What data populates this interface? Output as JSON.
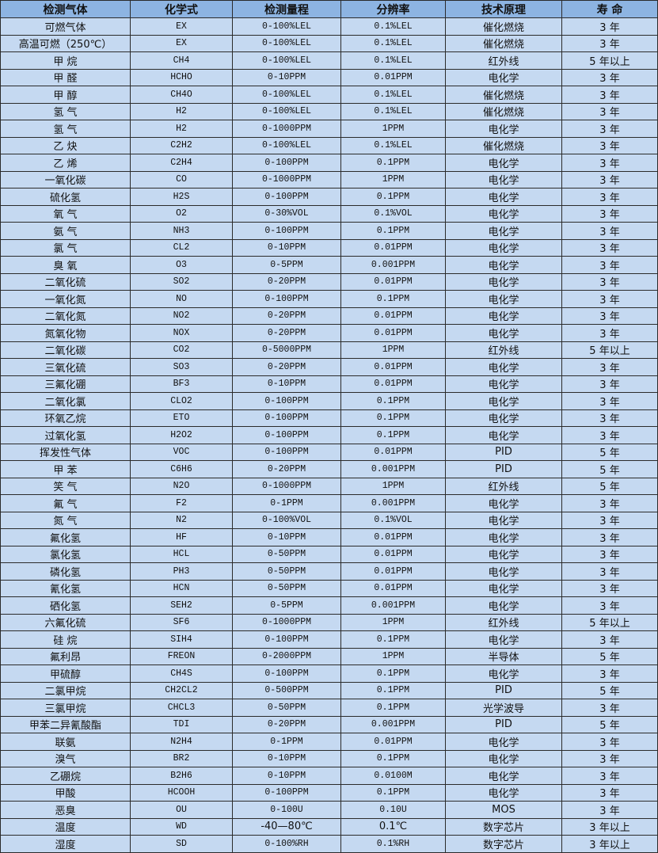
{
  "table": {
    "headers": [
      "检测气体",
      "化学式",
      "检测量程",
      "分辨率",
      "技术原理",
      "寿 命"
    ],
    "rows": [
      [
        "可燃气体",
        "EX",
        "0-100%LEL",
        "0.1%LEL",
        "催化燃烧",
        "3 年"
      ],
      [
        "高温可燃（250℃）",
        "EX",
        "0-100%LEL",
        "0.1%LEL",
        "催化燃烧",
        "3 年"
      ],
      [
        "甲 烷",
        "CH4",
        "0-100%LEL",
        "0.1%LEL",
        "红外线",
        "5 年以上"
      ],
      [
        "甲 醛",
        "HCHO",
        "0-10PPM",
        "0.01PPM",
        "电化学",
        "3 年"
      ],
      [
        "甲 醇",
        "CH4O",
        "0-100%LEL",
        "0.1%LEL",
        "催化燃烧",
        "3 年"
      ],
      [
        "氢 气",
        "H2",
        "0-100%LEL",
        "0.1%LEL",
        "催化燃烧",
        "3 年"
      ],
      [
        "氢 气",
        "H2",
        "0-1000PPM",
        "1PPM",
        "电化学",
        "3 年"
      ],
      [
        "乙 炔",
        "C2H2",
        "0-100%LEL",
        "0.1%LEL",
        "催化燃烧",
        "3 年"
      ],
      [
        "乙 烯",
        "C2H4",
        "0-100PPM",
        "0.1PPM",
        "电化学",
        "3 年"
      ],
      [
        "一氧化碳",
        "CO",
        "0-1000PPM",
        "1PPM",
        "电化学",
        "3 年"
      ],
      [
        "硫化氢",
        "H2S",
        "0-100PPM",
        "0.1PPM",
        "电化学",
        "3 年"
      ],
      [
        "氧 气",
        "O2",
        "0-30%VOL",
        "0.1%VOL",
        "电化学",
        "3 年"
      ],
      [
        "氨 气",
        "NH3",
        "0-100PPM",
        "0.1PPM",
        "电化学",
        "3 年"
      ],
      [
        "氯 气",
        "CL2",
        "0-10PPM",
        "0.01PPM",
        "电化学",
        "3 年"
      ],
      [
        "臭 氧",
        "O3",
        "0-5PPM",
        "0.001PPM",
        "电化学",
        "3 年"
      ],
      [
        "二氧化硫",
        "SO2",
        "0-20PPM",
        "0.01PPM",
        "电化学",
        "3 年"
      ],
      [
        "一氧化氮",
        "NO",
        "0-100PPM",
        "0.1PPM",
        "电化学",
        "3 年"
      ],
      [
        "二氧化氮",
        "NO2",
        "0-20PPM",
        "0.01PPM",
        "电化学",
        "3 年"
      ],
      [
        "氮氧化物",
        "NOX",
        "0-20PPM",
        "0.01PPM",
        "电化学",
        "3 年"
      ],
      [
        "二氧化碳",
        "CO2",
        "0-5000PPM",
        "1PPM",
        "红外线",
        "5 年以上"
      ],
      [
        "三氧化硫",
        "SO3",
        "0-20PPM",
        "0.01PPM",
        "电化学",
        "3 年"
      ],
      [
        "三氟化硼",
        "BF3",
        "0-10PPM",
        "0.01PPM",
        "电化学",
        "3 年"
      ],
      [
        "二氧化氯",
        "CLO2",
        "0-100PPM",
        "0.1PPM",
        "电化学",
        "3 年"
      ],
      [
        "环氧乙烷",
        "ETO",
        "0-100PPM",
        "0.1PPM",
        "电化学",
        "3 年"
      ],
      [
        "过氧化氢",
        "H2O2",
        "0-100PPM",
        "0.1PPM",
        "电化学",
        "3 年"
      ],
      [
        "挥发性气体",
        "VOC",
        "0-100PPM",
        "0.01PPM",
        "PID",
        "5 年"
      ],
      [
        "甲 苯",
        "C6H6",
        "0-20PPM",
        "0.001PPM",
        "PID",
        "5 年"
      ],
      [
        "笑 气",
        "N2O",
        "0-1000PPM",
        "1PPM",
        "红外线",
        "5 年"
      ],
      [
        "氟 气",
        "F2",
        "0-1PPM",
        "0.001PPM",
        "电化学",
        "3 年"
      ],
      [
        "氮 气",
        "N2",
        "0-100%VOL",
        "0.1%VOL",
        "电化学",
        "3 年"
      ],
      [
        "氟化氢",
        "HF",
        "0-10PPM",
        "0.01PPM",
        "电化学",
        "3 年"
      ],
      [
        "氯化氢",
        "HCL",
        "0-50PPM",
        "0.01PPM",
        "电化学",
        "3 年"
      ],
      [
        "磷化氢",
        "PH3",
        "0-50PPM",
        "0.01PPM",
        "电化学",
        "3 年"
      ],
      [
        "氰化氢",
        "HCN",
        "0-50PPM",
        "0.01PPM",
        "电化学",
        "3 年"
      ],
      [
        "硒化氢",
        "SEH2",
        "0-5PPM",
        "0.001PPM",
        "电化学",
        "3 年"
      ],
      [
        "六氟化硫",
        "SF6",
        "0-1000PPM",
        "1PPM",
        "红外线",
        "5 年以上"
      ],
      [
        "硅 烷",
        "SIH4",
        "0-100PPM",
        "0.1PPM",
        "电化学",
        "3 年"
      ],
      [
        "氟利昂",
        "FREON",
        "0-2000PPM",
        "1PPM",
        "半导体",
        "5 年"
      ],
      [
        "甲硫醇",
        "CH4S",
        "0-100PPM",
        "0.1PPM",
        "电化学",
        "3 年"
      ],
      [
        "二氯甲烷",
        "CH2CL2",
        "0-500PPM",
        "0.1PPM",
        "PID",
        "5 年"
      ],
      [
        "三氯甲烷",
        "CHCL3",
        "0-50PPM",
        "0.1PPM",
        "光学波导",
        "3 年"
      ],
      [
        "甲苯二异氰酸酯",
        "TDI",
        "0-20PPM",
        "0.001PPM",
        "PID",
        "5 年"
      ],
      [
        "联氨",
        "N2H4",
        "0-1PPM",
        "0.01PPM",
        "电化学",
        "3 年"
      ],
      [
        "溴气",
        "BR2",
        "0-10PPM",
        "0.1PPM",
        "电化学",
        "3 年"
      ],
      [
        "乙硼烷",
        "B2H6",
        "0-10PPM",
        "0.0100M",
        "电化学",
        "3 年"
      ],
      [
        "甲酸",
        "HCOOH",
        "0-100PPM",
        "0.1PPM",
        "电化学",
        "3 年"
      ],
      [
        "恶臭",
        "OU",
        "0-100U",
        "0.10U",
        "MOS",
        "3 年"
      ],
      [
        "温度",
        "WD",
        "-40—80℃",
        "0.1℃",
        "数字芯片",
        "3 年以上"
      ],
      [
        "湿度",
        "SD",
        "0-100%RH",
        "0.1%RH",
        "数字芯片",
        "3 年以上"
      ]
    ]
  }
}
